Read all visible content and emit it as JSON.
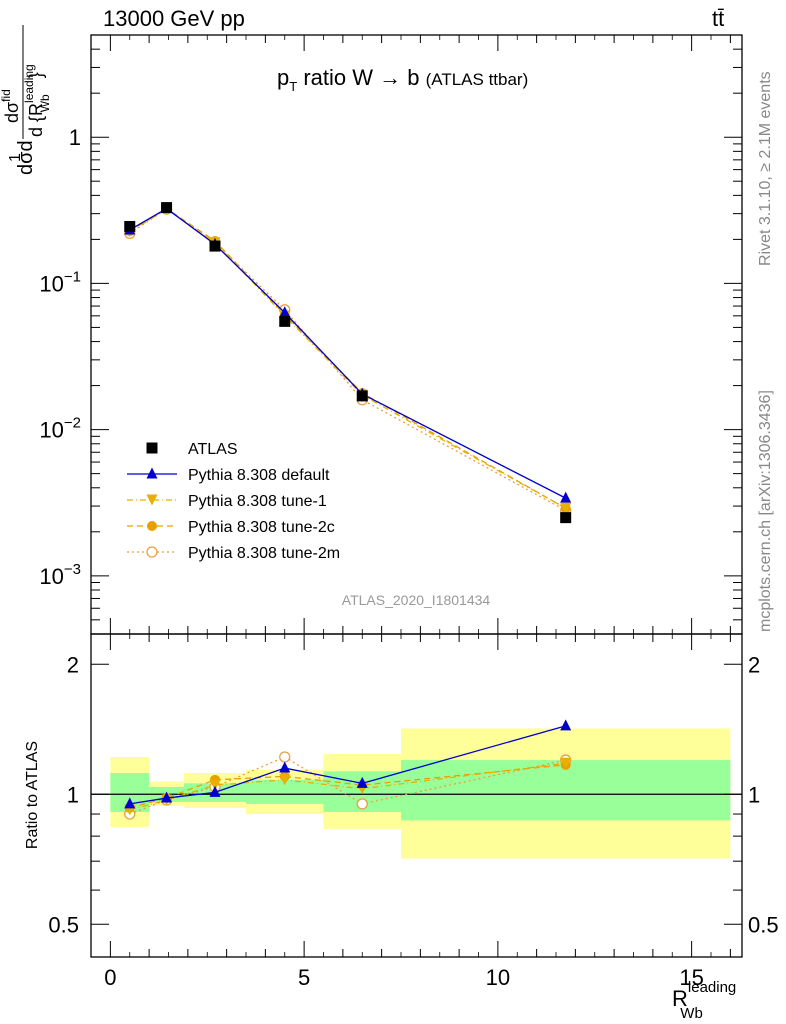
{
  "header": {
    "left_label": "13000 GeV pp",
    "right_label": "tt̄"
  },
  "side_labels": {
    "rivet": "Rivet 3.1.10, ≥ 2.1M events",
    "mcplots": "mcplots.cern.ch [arXiv:1306.3436]"
  },
  "colors": {
    "atlas": "#000000",
    "default": "#0000cc",
    "tune_1": "#e8b000",
    "tune_2c": "#e8a000",
    "tune_2m": "#e8a040",
    "band_inner": "#99ff99",
    "band_outer": "#ffff99"
  },
  "chart_data": [
    {
      "type": "line",
      "title": "p_T ratio W → b (ATLAS ttbar)",
      "title_parts": {
        "main": "ratio W",
        "arrow": "→",
        "b": "b",
        "tag": "(ATLAS ttbar)",
        "p": "p",
        "sub": "T"
      },
      "ylabel": "1/σ dσ/d{R_Wb^leading}",
      "ylabel_parts": {
        "frac_num": "dσ",
        "frac_num_sup": "fid",
        "frac_den": "d {R",
        "frac_den_sup": "leading",
        "frac_den_sub": "Wb",
        "frac_den_close": "}",
        "lead": "d",
        "one": "1",
        "sigma": "σ"
      },
      "yscale": "log",
      "ylim": [
        0.0004,
        5
      ],
      "xlim": [
        -0.5,
        16.3
      ],
      "yticks": [
        {
          "v": 1,
          "base": "1",
          "exp": ""
        },
        {
          "v": 0.1,
          "base": "10",
          "exp": "−1"
        },
        {
          "v": 0.01,
          "base": "10",
          "exp": "−2"
        },
        {
          "v": 0.001,
          "base": "10",
          "exp": "−3"
        }
      ],
      "watermark": "ATLAS_2020_I1801434",
      "legend_position": "bottom-left",
      "x": [
        0.5,
        1.45,
        2.7,
        4.5,
        6.5,
        11.75
      ],
      "series": [
        {
          "name": "ATLAS",
          "values": [
            0.245,
            0.33,
            0.18,
            0.055,
            0.017,
            0.0025
          ],
          "marker": "square",
          "line": "none"
        },
        {
          "name": "Pythia 8.308 default",
          "values": [
            0.232,
            0.325,
            0.185,
            0.063,
            0.0175,
            0.0034
          ],
          "marker": "triangle-up",
          "line": "solid"
        },
        {
          "name": "Pythia 8.308 tune-1",
          "values": [
            0.225,
            0.322,
            0.19,
            0.06,
            0.0172,
            0.0029
          ],
          "marker": "triangle-down",
          "line": "dashdot"
        },
        {
          "name": "Pythia 8.308 tune-2c",
          "values": [
            0.228,
            0.325,
            0.195,
            0.061,
            0.0178,
            0.0029
          ],
          "marker": "circle-filled",
          "line": "dashed"
        },
        {
          "name": "Pythia 8.308 tune-2m",
          "values": [
            0.22,
            0.322,
            0.19,
            0.066,
            0.016,
            0.0028
          ],
          "marker": "circle-open",
          "line": "dotted"
        }
      ]
    },
    {
      "type": "line",
      "ylabel": "Ratio to ATLAS",
      "xlabel": "R_Wb^leading",
      "xlabel_parts": {
        "main": "R",
        "sup": "leading",
        "sub": "Wb"
      },
      "yscale": "log",
      "ylim": [
        0.42,
        2.35
      ],
      "xlim": [
        -0.5,
        16.3
      ],
      "yticks": [
        {
          "v": 2,
          "label": "2"
        },
        {
          "v": 1,
          "label": "1"
        },
        {
          "v": 0.5,
          "label": "0.5"
        }
      ],
      "xticks": [
        {
          "v": 0,
          "label": "0"
        },
        {
          "v": 5,
          "label": "5"
        },
        {
          "v": 10,
          "label": "10"
        },
        {
          "v": 15,
          "label": "15"
        }
      ],
      "bands": [
        {
          "x0": 0,
          "x1": 1,
          "inner": [
            0.91,
            1.12
          ],
          "outer": [
            0.84,
            1.22
          ]
        },
        {
          "x0": 1,
          "x1": 1.9,
          "inner": [
            0.96,
            1.04
          ],
          "outer": [
            0.94,
            1.07
          ]
        },
        {
          "x0": 1.9,
          "x1": 3.5,
          "inner": [
            0.96,
            1.06
          ],
          "outer": [
            0.93,
            1.12
          ]
        },
        {
          "x0": 3.5,
          "x1": 5.5,
          "inner": [
            0.95,
            1.08
          ],
          "outer": [
            0.9,
            1.14
          ]
        },
        {
          "x0": 5.5,
          "x1": 7.5,
          "inner": [
            0.91,
            1.13
          ],
          "outer": [
            0.83,
            1.24
          ]
        },
        {
          "x0": 7.5,
          "x1": 16,
          "inner": [
            0.87,
            1.2
          ],
          "outer": [
            0.71,
            1.42
          ]
        }
      ],
      "x": [
        0.5,
        1.45,
        2.7,
        4.5,
        6.5,
        11.75
      ],
      "series": [
        {
          "name": "Pythia 8.308 default",
          "values": [
            0.95,
            0.98,
            1.01,
            1.15,
            1.06,
            1.44
          ]
        },
        {
          "name": "Pythia 8.308 tune-1",
          "values": [
            0.92,
            0.97,
            1.05,
            1.08,
            1.03,
            1.18
          ]
        },
        {
          "name": "Pythia 8.308 tune-2c",
          "values": [
            0.93,
            0.98,
            1.08,
            1.1,
            1.05,
            1.17
          ]
        },
        {
          "name": "Pythia 8.308 tune-2m",
          "values": [
            0.9,
            0.97,
            1.04,
            1.22,
            0.95,
            1.2
          ]
        }
      ]
    }
  ]
}
